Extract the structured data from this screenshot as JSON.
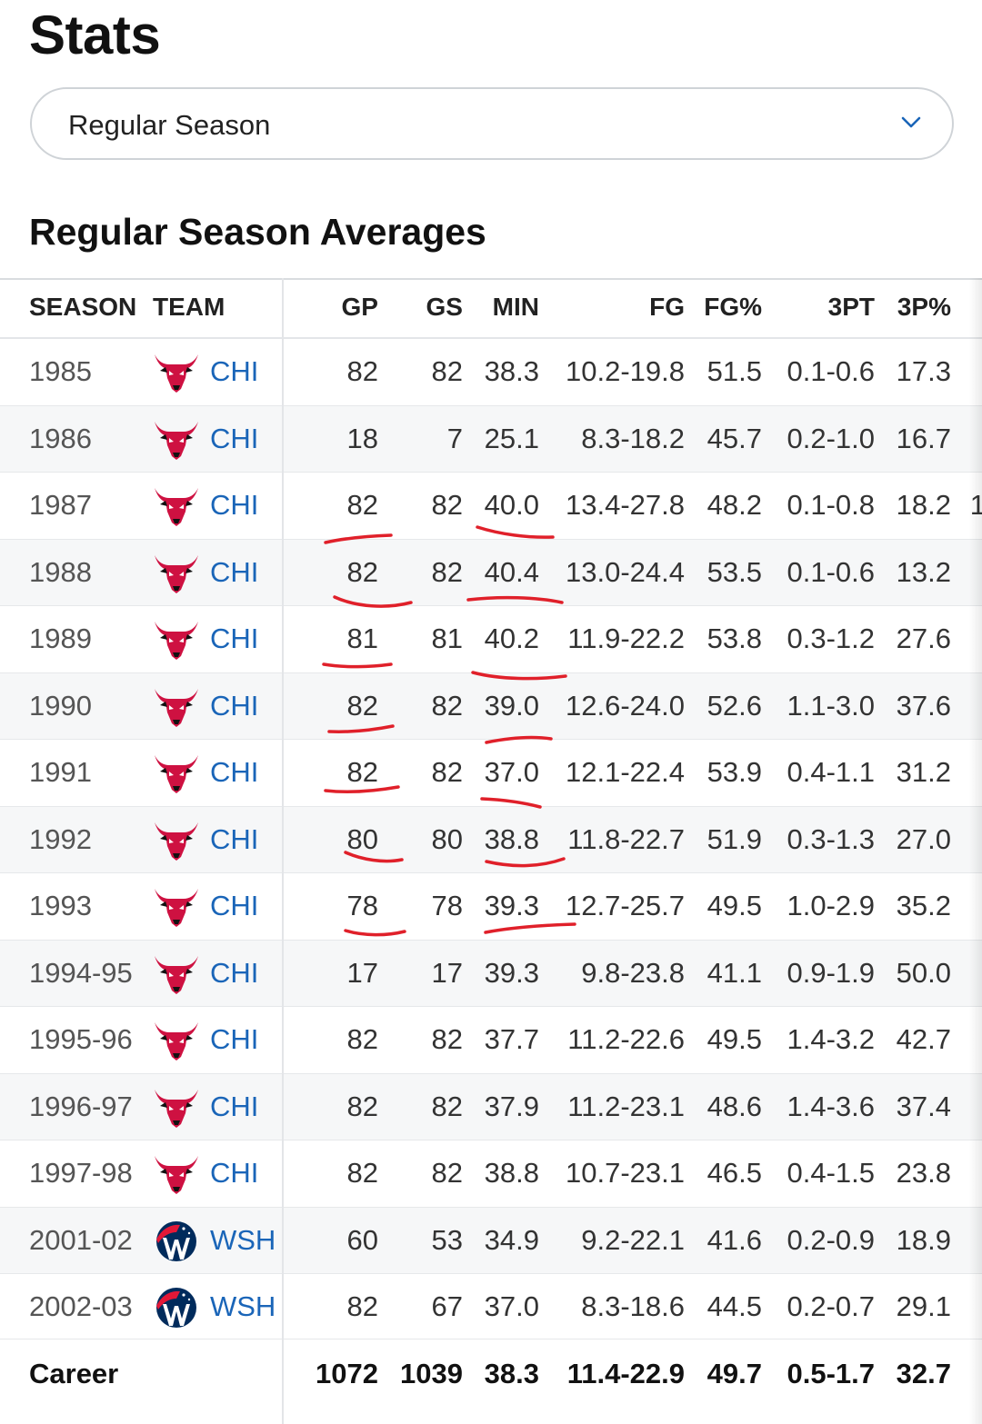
{
  "page": {
    "title": "Stats",
    "season_select": {
      "value": "Regular Season",
      "icon": "chevron-down-icon"
    },
    "section_title": "Regular Season Averages"
  },
  "table": {
    "headers": {
      "season": "SEASON",
      "team": "TEAM",
      "gp": "GP",
      "gs": "GS",
      "min": "MIN",
      "fg": "FG",
      "fgp": "FG%",
      "tpt": "3PT",
      "tpp": "3P%"
    },
    "rows": [
      {
        "season": "1985",
        "team": "CHI",
        "logo": "bulls-logo-icon",
        "gp": "82",
        "gs": "82",
        "min": "38.3",
        "fg": "10.2-19.8",
        "fgp": "51.5",
        "tpt": "0.1-0.6",
        "tpp": "17.3"
      },
      {
        "season": "1986",
        "team": "CHI",
        "logo": "bulls-logo-icon",
        "gp": "18",
        "gs": "7",
        "min": "25.1",
        "fg": "8.3-18.2",
        "fgp": "45.7",
        "tpt": "0.2-1.0",
        "tpp": "16.7"
      },
      {
        "season": "1987",
        "team": "CHI",
        "logo": "bulls-logo-icon",
        "gp": "82",
        "gs": "82",
        "min": "40.0",
        "fg": "13.4-27.8",
        "fgp": "48.2",
        "tpt": "0.1-0.8",
        "tpp": "18.2"
      },
      {
        "season": "1988",
        "team": "CHI",
        "logo": "bulls-logo-icon",
        "gp": "82",
        "gs": "82",
        "min": "40.4",
        "fg": "13.0-24.4",
        "fgp": "53.5",
        "tpt": "0.1-0.6",
        "tpp": "13.2"
      },
      {
        "season": "1989",
        "team": "CHI",
        "logo": "bulls-logo-icon",
        "gp": "81",
        "gs": "81",
        "min": "40.2",
        "fg": "11.9-22.2",
        "fgp": "53.8",
        "tpt": "0.3-1.2",
        "tpp": "27.6"
      },
      {
        "season": "1990",
        "team": "CHI",
        "logo": "bulls-logo-icon",
        "gp": "82",
        "gs": "82",
        "min": "39.0",
        "fg": "12.6-24.0",
        "fgp": "52.6",
        "tpt": "1.1-3.0",
        "tpp": "37.6"
      },
      {
        "season": "1991",
        "team": "CHI",
        "logo": "bulls-logo-icon",
        "gp": "82",
        "gs": "82",
        "min": "37.0",
        "fg": "12.1-22.4",
        "fgp": "53.9",
        "tpt": "0.4-1.1",
        "tpp": "31.2"
      },
      {
        "season": "1992",
        "team": "CHI",
        "logo": "bulls-logo-icon",
        "gp": "80",
        "gs": "80",
        "min": "38.8",
        "fg": "11.8-22.7",
        "fgp": "51.9",
        "tpt": "0.3-1.3",
        "tpp": "27.0"
      },
      {
        "season": "1993",
        "team": "CHI",
        "logo": "bulls-logo-icon",
        "gp": "78",
        "gs": "78",
        "min": "39.3",
        "fg": "12.7-25.7",
        "fgp": "49.5",
        "tpt": "1.0-2.9",
        "tpp": "35.2"
      },
      {
        "season": "1994-95",
        "team": "CHI",
        "logo": "bulls-logo-icon",
        "gp": "17",
        "gs": "17",
        "min": "39.3",
        "fg": "9.8-23.8",
        "fgp": "41.1",
        "tpt": "0.9-1.9",
        "tpp": "50.0"
      },
      {
        "season": "1995-96",
        "team": "CHI",
        "logo": "bulls-logo-icon",
        "gp": "82",
        "gs": "82",
        "min": "37.7",
        "fg": "11.2-22.6",
        "fgp": "49.5",
        "tpt": "1.4-3.2",
        "tpp": "42.7"
      },
      {
        "season": "1996-97",
        "team": "CHI",
        "logo": "bulls-logo-icon",
        "gp": "82",
        "gs": "82",
        "min": "37.9",
        "fg": "11.2-23.1",
        "fgp": "48.6",
        "tpt": "1.4-3.6",
        "tpp": "37.4"
      },
      {
        "season": "1997-98",
        "team": "CHI",
        "logo": "bulls-logo-icon",
        "gp": "82",
        "gs": "82",
        "min": "38.8",
        "fg": "10.7-23.1",
        "fgp": "46.5",
        "tpt": "0.4-1.5",
        "tpp": "23.8"
      },
      {
        "season": "2001-02",
        "team": "WSH",
        "logo": "wizards-logo-icon",
        "gp": "60",
        "gs": "53",
        "min": "34.9",
        "fg": "9.2-22.1",
        "fgp": "41.6",
        "tpt": "0.2-0.9",
        "tpp": "18.9"
      },
      {
        "season": "2002-03",
        "team": "WSH",
        "logo": "wizards-logo-icon",
        "gp": "82",
        "gs": "67",
        "min": "37.0",
        "fg": "8.3-18.6",
        "fgp": "44.5",
        "tpt": "0.2-0.7",
        "tpp": "29.1"
      }
    ],
    "overflow_digit": "1",
    "career": {
      "label": "Career",
      "gp": "1072",
      "gs": "1039",
      "min": "38.3",
      "fg": "11.4-22.9",
      "fgp": "49.7",
      "tpt": "0.5-1.7",
      "tpp": "32.7"
    }
  },
  "colors": {
    "link_blue": "#1a65b8",
    "bulls_red": "#ce1141",
    "wizards_navy": "#002b5c",
    "annotation_red": "#e0202a"
  }
}
